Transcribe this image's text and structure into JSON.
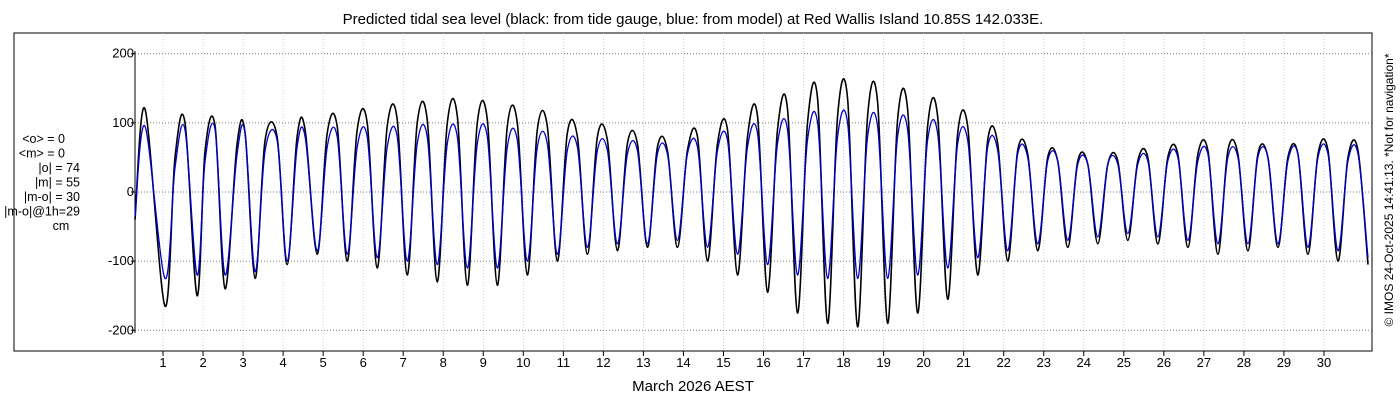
{
  "chart_data": {
    "type": "line",
    "title": "Predicted tidal sea level (black: from tide gauge, blue: from model) at Red Wallis Island 10.85S 142.033E.",
    "xlabel": "March 2026 AEST",
    "ylabel": "",
    "xlim": [
      0.3,
      31.2
    ],
    "ylim": [
      -230,
      230
    ],
    "yticks": [
      200,
      100,
      0,
      -100,
      -200
    ],
    "xtick_labels": [
      "1",
      "2",
      "3",
      "4",
      "5",
      "6",
      "7",
      "8",
      "9",
      "10",
      "11",
      "12",
      "13",
      "14",
      "15",
      "16",
      "17",
      "18",
      "19",
      "20",
      "21",
      "22",
      "23",
      "24",
      "25",
      "26",
      "27",
      "28",
      "29",
      "30"
    ],
    "grid": true,
    "series": [
      {
        "name": "black: from tide gauge",
        "color": "#000000",
        "x": [
          0.3,
          0.55,
          1.05,
          1.3,
          1.55,
          1.85,
          2.05,
          2.3,
          2.55,
          2.85,
          3.05,
          3.3,
          3.55,
          3.85,
          4.1,
          4.35,
          4.55,
          4.85,
          5.1,
          5.35,
          5.6,
          5.85,
          6.1,
          6.35,
          6.6,
          6.85,
          7.1,
          7.35,
          7.6,
          7.85,
          8.1,
          8.35,
          8.6,
          8.85,
          9.1,
          9.35,
          9.6,
          9.85,
          10.1,
          10.35,
          10.6,
          10.85,
          11.1,
          11.35,
          11.6,
          11.85,
          12.1,
          12.35,
          12.6,
          12.85,
          13.1,
          13.35,
          13.6,
          13.85,
          14.1,
          14.35,
          14.6,
          14.85,
          15.1,
          15.35,
          15.6,
          15.85,
          16.1,
          16.35,
          16.6,
          16.85,
          17.1,
          17.35,
          17.6,
          17.85,
          18.1,
          18.35,
          18.6,
          18.85,
          19.1,
          19.35,
          19.6,
          19.85,
          20.1,
          20.35,
          20.6,
          20.85,
          21.1,
          21.35,
          21.6,
          21.85,
          22.1,
          22.35,
          22.6,
          22.85,
          23.1,
          23.35,
          23.6,
          23.85,
          24.1,
          24.35,
          24.6,
          24.85,
          25.1,
          25.35,
          25.6,
          25.85,
          26.1,
          26.35,
          26.6,
          26.85,
          27.1,
          27.35,
          27.6,
          27.85,
          28.1,
          28.35,
          28.6,
          28.85,
          29.1,
          29.35,
          29.6,
          29.85,
          30.1,
          30.35,
          30.6,
          30.85,
          31.1
        ],
        "values": [
          -40,
          120,
          -165,
          50,
          100,
          -150,
          60,
          95,
          -140,
          70,
          85,
          -125,
          75,
          80,
          -105,
          80,
          90,
          -90,
          85,
          95,
          -100,
          90,
          100,
          -110,
          95,
          105,
          -120,
          100,
          105,
          -130,
          100,
          110,
          -135,
          100,
          105,
          -135,
          95,
          100,
          -120,
          90,
          95,
          -100,
          85,
          80,
          -90,
          80,
          75,
          -85,
          70,
          70,
          -80,
          65,
          60,
          -80,
          60,
          80,
          -100,
          70,
          90,
          -120,
          80,
          110,
          -145,
          90,
          120,
          -175,
          100,
          135,
          -190,
          110,
          135,
          -195,
          110,
          130,
          -190,
          105,
          120,
          -175,
          95,
          110,
          -155,
          85,
          95,
          -120,
          75,
          70,
          -100,
          60,
          55,
          -85,
          50,
          45,
          -80,
          45,
          40,
          -75,
          40,
          45,
          -70,
          45,
          50,
          -75,
          50,
          55,
          -80,
          55,
          60,
          -90,
          60,
          55,
          -85,
          55,
          50,
          -80,
          50,
          55,
          -90,
          55,
          60,
          -100,
          50,
          60,
          -105
        ]
      },
      {
        "name": "blue: from model",
        "color": "#0000cc",
        "x": [
          0.3,
          0.55,
          1.05,
          1.3,
          1.55,
          1.85,
          2.05,
          2.3,
          2.55,
          2.85,
          3.05,
          3.3,
          3.55,
          3.85,
          4.1,
          4.35,
          4.55,
          4.85,
          5.1,
          5.35,
          5.6,
          5.85,
          6.1,
          6.35,
          6.6,
          6.85,
          7.1,
          7.35,
          7.6,
          7.85,
          8.1,
          8.35,
          8.6,
          8.85,
          9.1,
          9.35,
          9.6,
          9.85,
          10.1,
          10.35,
          10.6,
          10.85,
          11.1,
          11.35,
          11.6,
          11.85,
          12.1,
          12.35,
          12.6,
          12.85,
          13.1,
          13.35,
          13.6,
          13.85,
          14.1,
          14.35,
          14.6,
          14.85,
          15.1,
          15.35,
          15.6,
          15.85,
          16.1,
          16.35,
          16.6,
          16.85,
          17.1,
          17.35,
          17.6,
          17.85,
          18.1,
          18.35,
          18.6,
          18.85,
          19.1,
          19.35,
          19.6,
          19.85,
          20.1,
          20.35,
          20.6,
          20.85,
          21.1,
          21.35,
          21.6,
          21.85,
          22.1,
          22.35,
          22.6,
          22.85,
          23.1,
          23.35,
          23.6,
          23.85,
          24.1,
          24.35,
          24.6,
          24.85,
          25.1,
          25.35,
          25.6,
          25.85,
          26.1,
          26.35,
          26.6,
          26.85,
          27.1,
          27.35,
          27.6,
          27.85,
          28.1,
          28.35,
          28.6,
          28.85,
          29.1,
          29.35,
          29.6,
          29.85,
          30.1,
          30.35,
          30.6,
          30.85,
          31.1
        ],
        "values": [
          -35,
          95,
          -125,
          35,
          90,
          -120,
          45,
          90,
          -120,
          55,
          85,
          -115,
          60,
          75,
          -100,
          65,
          80,
          -85,
          65,
          80,
          -90,
          65,
          80,
          -95,
          65,
          80,
          -100,
          70,
          80,
          -105,
          70,
          80,
          -110,
          70,
          80,
          -110,
          65,
          75,
          -100,
          65,
          70,
          -90,
          60,
          65,
          -80,
          60,
          60,
          -75,
          55,
          60,
          -75,
          55,
          55,
          -70,
          55,
          65,
          -80,
          60,
          75,
          -90,
          65,
          85,
          -105,
          70,
          90,
          -120,
          75,
          100,
          -125,
          80,
          100,
          -125,
          80,
          95,
          -125,
          80,
          90,
          -120,
          75,
          85,
          -110,
          70,
          75,
          -95,
          65,
          60,
          -85,
          55,
          50,
          -75,
          45,
          45,
          -70,
          40,
          40,
          -65,
          40,
          40,
          -60,
          40,
          45,
          -65,
          45,
          50,
          -70,
          45,
          55,
          -75,
          50,
          50,
          -75,
          50,
          50,
          -75,
          45,
          55,
          -80,
          50,
          55,
          -85,
          45,
          55,
          -95
        ]
      }
    ],
    "stats_block": [
      "<o> = 0",
      "<m> = 0",
      "|o| = 74",
      "|m| = 55",
      "|m-o| = 30",
      "|m-o|@1h=29",
      "cm"
    ],
    "side_note": "© IMOS 24-Oct-2025 14:41:13. *Not for navigation*"
  }
}
